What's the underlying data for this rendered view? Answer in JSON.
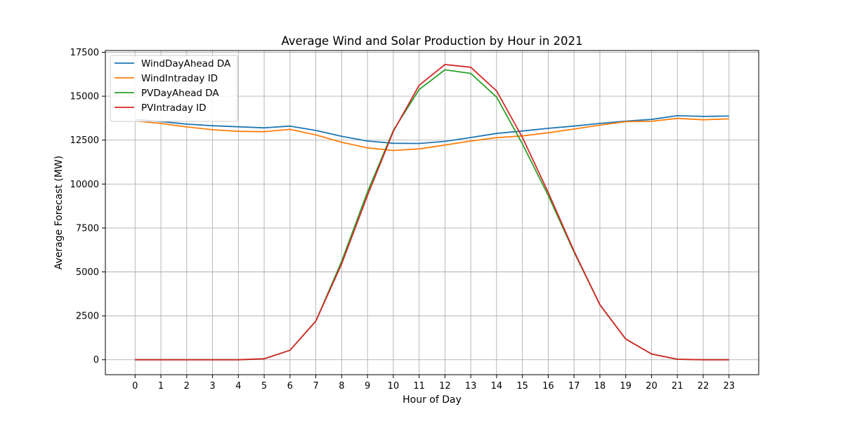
{
  "chart_data": {
    "type": "line",
    "title": "Average Wind and Solar Production by Hour in 2021",
    "xlabel": "Hour of Day",
    "ylabel": "Average Forecast (MW)",
    "x": [
      0,
      1,
      2,
      3,
      4,
      5,
      6,
      7,
      8,
      9,
      10,
      11,
      12,
      13,
      14,
      15,
      16,
      17,
      18,
      19,
      20,
      21,
      22,
      23
    ],
    "xlim": [
      -1.15,
      24.15
    ],
    "ylim": [
      -850,
      17600
    ],
    "yticks": [
      0,
      2500,
      5000,
      7500,
      10000,
      12500,
      15000,
      17500
    ],
    "grid": true,
    "legend_position": "upper-left",
    "series": [
      {
        "name": "WindDayAhead DA",
        "color": "#1f77b4",
        "values": [
          13680,
          13560,
          13410,
          13320,
          13260,
          13200,
          13300,
          13050,
          12720,
          12450,
          12320,
          12310,
          12430,
          12650,
          12880,
          13020,
          13170,
          13300,
          13450,
          13580,
          13680,
          13890,
          13850,
          13870
        ]
      },
      {
        "name": "WindIntraday ID",
        "color": "#ff7f0e",
        "values": [
          13590,
          13450,
          13250,
          13090,
          13000,
          12980,
          13110,
          12800,
          12380,
          12060,
          11910,
          12000,
          12220,
          12450,
          12640,
          12740,
          12920,
          13130,
          13350,
          13550,
          13570,
          13740,
          13660,
          13710
        ]
      },
      {
        "name": "PVDayAhead DA",
        "color": "#2ca02c",
        "values": [
          0,
          0,
          0,
          0,
          0,
          55,
          540,
          2200,
          5600,
          9550,
          13050,
          15380,
          16500,
          16300,
          14950,
          12280,
          9350,
          6120,
          3130,
          1180,
          330,
          30,
          0,
          0
        ]
      },
      {
        "name": "PVIntraday ID",
        "color": "#d62728",
        "values": [
          0,
          0,
          0,
          0,
          0,
          55,
          540,
          2200,
          5450,
          9350,
          13000,
          15620,
          16800,
          16650,
          15300,
          12650,
          9520,
          6180,
          3130,
          1180,
          330,
          30,
          0,
          0
        ]
      }
    ]
  }
}
